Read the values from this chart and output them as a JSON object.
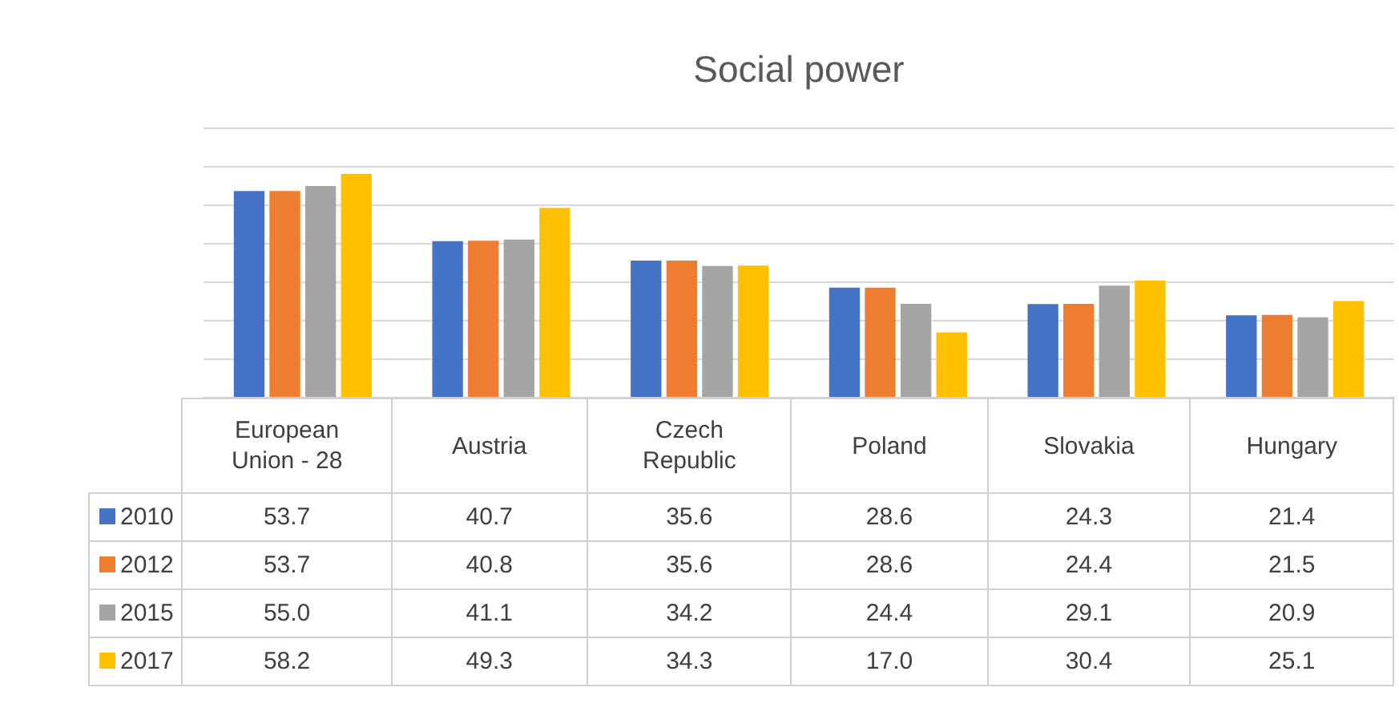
{
  "chart_data": {
    "type": "bar",
    "title": "Social power",
    "categories": [
      "European Union - 28",
      "Austria",
      "Czech Republic",
      "Poland",
      "Slovakia",
      "Hungary"
    ],
    "series": [
      {
        "name": "2010",
        "color": "#4472c4",
        "values": [
          53.7,
          40.7,
          35.6,
          28.6,
          24.3,
          21.4
        ],
        "value_labels": [
          "53.7",
          "40.7",
          "35.6",
          "28.6",
          "24.3",
          "21.4"
        ]
      },
      {
        "name": "2012",
        "color": "#ed7d31",
        "values": [
          53.7,
          40.8,
          35.6,
          28.6,
          24.4,
          21.5
        ],
        "value_labels": [
          "53.7",
          "40.8",
          "35.6",
          "28.6",
          "24.4",
          "21.5"
        ]
      },
      {
        "name": "2015",
        "color": "#a5a5a5",
        "values": [
          55.0,
          41.1,
          34.2,
          24.4,
          29.1,
          20.9
        ],
        "value_labels": [
          "55.0",
          "41.1",
          "34.2",
          "24.4",
          "29.1",
          "20.9"
        ]
      },
      {
        "name": "2017",
        "color": "#ffc000",
        "values": [
          58.2,
          49.3,
          34.3,
          17.0,
          30.4,
          25.1
        ],
        "value_labels": [
          "58.2",
          "49.3",
          "34.3",
          "17.0",
          "30.4",
          "25.1"
        ]
      }
    ],
    "ylim": [
      0,
      70
    ],
    "yticks": [
      {
        "value": 0,
        "label": null
      },
      {
        "value": 10,
        "label": null
      },
      {
        "value": 20,
        "label": null
      },
      {
        "value": 30,
        "label": null
      },
      {
        "value": 40,
        "label": null
      },
      {
        "value": 50,
        "label": null
      },
      {
        "value": 60,
        "label": null
      },
      {
        "value": 70,
        "label": null
      }
    ],
    "grid": "y",
    "legend": "bottom",
    "tick_labels": "x"
  }
}
